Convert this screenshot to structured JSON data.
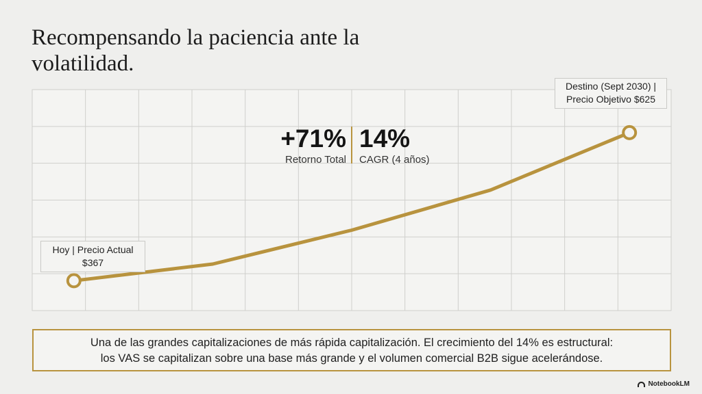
{
  "chart_data": {
    "type": "line",
    "title": "Recompensando la paciencia ante la volatilidad.",
    "xlabel": "",
    "ylabel": "",
    "grid": true,
    "x": [
      0,
      1,
      2,
      3,
      4
    ],
    "series": [
      {
        "values": [
          367,
          396,
          455,
          525,
          625
        ]
      }
    ],
    "ylim": [
      315,
      700
    ],
    "xlim": [
      -0.3,
      4.3
    ],
    "colors": {
      "line": "#b8933e",
      "grid": "#cfcfcc",
      "plot_bg": "#f4f4f2"
    },
    "annotations": {
      "start": {
        "line1": "Hoy | Precio Actual",
        "line2": "$367"
      },
      "end": {
        "line1": "Destino (Sept 2030) |",
        "line2": "Precio Objetivo $625"
      }
    },
    "kpis": [
      {
        "value": "+71%",
        "label": "Retorno Total"
      },
      {
        "value": "14%",
        "label": "CAGR (4 años)"
      }
    ]
  },
  "note": {
    "line1": "Una de las grandes capitalizaciones de más rápida capitalización. El crecimiento del 14% es estructural:",
    "line2": "los VAS se capitalizan sobre una base más grande y el volumen comercial B2B sigue acelerándose."
  },
  "brand": {
    "label": "NotebookLM",
    "icon": "notebooklm-icon"
  }
}
